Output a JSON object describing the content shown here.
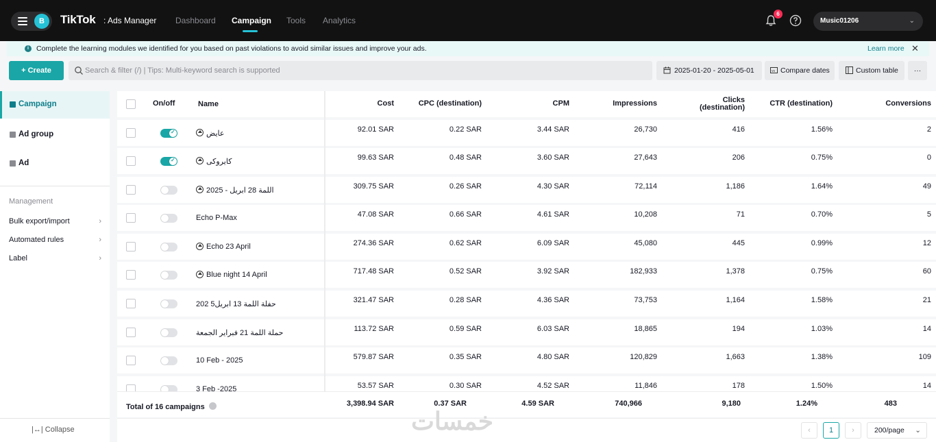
{
  "topbar": {
    "avatar_letter": "B",
    "logo": "TikTok",
    "logo_suffix": ": Ads Manager",
    "nav": [
      "Dashboard",
      "Campaign",
      "Tools",
      "Analytics"
    ],
    "notification_count": "6",
    "account_name": "Music01206"
  },
  "banner": {
    "text": "Complete the learning modules we identified for you based on past violations to avoid similar issues and improve your ads.",
    "link": "Learn more"
  },
  "toolbar": {
    "create_label": "+ Create",
    "search_placeholder": "Search & filter (/) | Tips: Multi-keyword search is supported",
    "date_range": "2025-01-20 - 2025-05-01",
    "compare_label": "Compare dates",
    "custom_label": "Custom table",
    "more_label": "···"
  },
  "sidebar": {
    "items": [
      "Campaign",
      "Ad group",
      "Ad"
    ],
    "heading": "Management",
    "links": [
      "Bulk export/import",
      "Automated rules",
      "Label"
    ],
    "collapse": "Collapse"
  },
  "table": {
    "headers": {
      "onoff": "On/off",
      "name": "Name",
      "cost": "Cost",
      "cpc": "CPC (destination)",
      "cpm": "CPM",
      "impressions": "Impressions",
      "clicks_line1": "Clicks",
      "clicks_line2": "(destination)",
      "ctr": "CTR (destination)",
      "conversions": "Conversions"
    },
    "rows": [
      {
        "on": true,
        "has_icon": true,
        "name": "عايض",
        "cost": "92.01 SAR",
        "cpc": "0.22 SAR",
        "cpm": "3.44 SAR",
        "impressions": "26,730",
        "clicks": "416",
        "ctr": "1.56%",
        "conversions": "2"
      },
      {
        "on": true,
        "has_icon": true,
        "name": "كايروكى",
        "cost": "99.63 SAR",
        "cpc": "0.48 SAR",
        "cpm": "3.60 SAR",
        "impressions": "27,643",
        "clicks": "206",
        "ctr": "0.75%",
        "conversions": "0"
      },
      {
        "on": false,
        "has_icon": true,
        "name": "اللمة 28 ابريل - 2025",
        "cost": "309.75 SAR",
        "cpc": "0.26 SAR",
        "cpm": "4.30 SAR",
        "impressions": "72,114",
        "clicks": "1,186",
        "ctr": "1.64%",
        "conversions": "49"
      },
      {
        "on": false,
        "has_icon": false,
        "name": "Echo P-Max",
        "cost": "47.08 SAR",
        "cpc": "0.66 SAR",
        "cpm": "4.61 SAR",
        "impressions": "10,208",
        "clicks": "71",
        "ctr": "0.70%",
        "conversions": "5"
      },
      {
        "on": false,
        "has_icon": true,
        "name": "Echo 23 April",
        "cost": "274.36 SAR",
        "cpc": "0.62 SAR",
        "cpm": "6.09 SAR",
        "impressions": "45,080",
        "clicks": "445",
        "ctr": "0.99%",
        "conversions": "12"
      },
      {
        "on": false,
        "has_icon": true,
        "name": "Blue night 14 April",
        "cost": "717.48 SAR",
        "cpc": "0.52 SAR",
        "cpm": "3.92 SAR",
        "impressions": "182,933",
        "clicks": "1,378",
        "ctr": "0.75%",
        "conversions": "60"
      },
      {
        "on": false,
        "has_icon": false,
        "name": "حفلة اللمة 13 ابريل5 202",
        "cost": "321.47 SAR",
        "cpc": "0.28 SAR",
        "cpm": "4.36 SAR",
        "impressions": "73,753",
        "clicks": "1,164",
        "ctr": "1.58%",
        "conversions": "21"
      },
      {
        "on": false,
        "has_icon": false,
        "name": "حملة اللمة 21 فبراير الجمعة",
        "cost": "113.72 SAR",
        "cpc": "0.59 SAR",
        "cpm": "6.03 SAR",
        "impressions": "18,865",
        "clicks": "194",
        "ctr": "1.03%",
        "conversions": "14"
      },
      {
        "on": false,
        "has_icon": false,
        "name": "10 Feb - 2025",
        "cost": "579.87 SAR",
        "cpc": "0.35 SAR",
        "cpm": "4.80 SAR",
        "impressions": "120,829",
        "clicks": "1,663",
        "ctr": "1.38%",
        "conversions": "109"
      },
      {
        "on": false,
        "has_icon": false,
        "name": "3 Feb -2025",
        "cost": "53.57 SAR",
        "cpc": "0.30 SAR",
        "cpm": "4.52 SAR",
        "impressions": "11,846",
        "clicks": "178",
        "ctr": "1.50%",
        "conversions": "14"
      }
    ],
    "total": {
      "label": "Total of 16 campaigns",
      "cost": "3,398.94 SAR",
      "cpc": "0.37 SAR",
      "cpm": "4.59 SAR",
      "impressions": "740,966",
      "clicks": "9,180",
      "ctr": "1.24%",
      "conversions": "483"
    }
  },
  "pagination": {
    "prev": "‹",
    "current": "1",
    "next": "›",
    "per_page": "200/page"
  },
  "watermark": "خمسات",
  "colors": {
    "accent": "#1aa6a6",
    "topbar": "#121212",
    "badge": "#fe2c55"
  }
}
